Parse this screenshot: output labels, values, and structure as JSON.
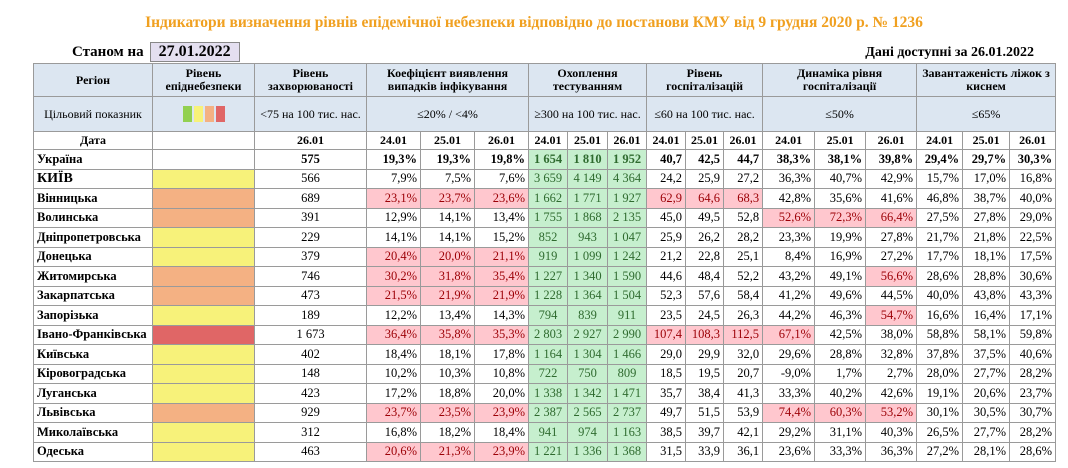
{
  "header": {
    "title": "Індикатори визначення рівнів епідемічної небезпеки відповідно до постанови КМУ від 9 грудня 2020 р. № 1236",
    "as_of_label": "Станом на",
    "as_of_date": "27.01.2022",
    "available": "Дані доступні за 26.01.2022"
  },
  "table": {
    "columns": [
      "Регіон",
      "Рівень епіднебезпеки",
      "Рівень захворюваності",
      "Коефіцієнт виявлення випадків інфікування",
      "Охоплення тестуванням",
      "Рівень госпіталізацій",
      "Динаміка рівня госпіталізації",
      "Завантаженість ліжок з киснем"
    ],
    "target_label": "Цільовий показник",
    "level_scale": [
      "#92d050",
      "#f7f27a",
      "#f4b183",
      "#e06666"
    ],
    "targets": [
      "<75 на 100 тис. нас.",
      "≤20% / <4%",
      "≥300 на 100 тис. нас.",
      "≤60 на 100 тис. нас.",
      "≤50%",
      "≤65%"
    ],
    "date_label": "Дата",
    "dates": [
      [
        "26.01"
      ],
      [
        "24.01",
        "25.01",
        "26.01"
      ],
      [
        "24.01",
        "25.01",
        "26.01"
      ],
      [
        "24.01",
        "25.01",
        "26.01"
      ],
      [
        "24.01",
        "25.01",
        "26.01"
      ],
      [
        "24.01",
        "25.01",
        "26.01"
      ]
    ],
    "rows": [
      {
        "region": "Україна",
        "cells": [
          "575",
          "19,3%",
          "19,3%",
          "19,8%",
          "1 654",
          "1 810",
          "1 952",
          "40,7",
          "42,5",
          "44,7",
          "38,3%",
          "38,1%",
          "39,8%",
          "29,4%",
          "29,7%",
          "30,3%"
        ],
        "red": []
      },
      {
        "region": "КИЇВ",
        "level_color": "#f7f27a",
        "cells": [
          "566",
          "7,9%",
          "7,5%",
          "7,6%",
          "3 659",
          "4 149",
          "4 364",
          "24,2",
          "25,9",
          "27,2",
          "36,3%",
          "40,7%",
          "42,9%",
          "15,7%",
          "17,0%",
          "16,8%"
        ],
        "red": []
      },
      {
        "region": "Вінницька",
        "level_color": "#f4b183",
        "cells": [
          "689",
          "23,1%",
          "23,7%",
          "23,6%",
          "1 662",
          "1 771",
          "1 927",
          "62,9",
          "64,6",
          "68,3",
          "42,8%",
          "35,6%",
          "41,6%",
          "46,8%",
          "38,7%",
          "40,0%"
        ],
        "red": [
          1,
          2,
          3,
          7,
          8,
          9
        ]
      },
      {
        "region": "Волинська",
        "level_color": "#f4b183",
        "cells": [
          "391",
          "12,9%",
          "14,1%",
          "13,4%",
          "1 755",
          "1 868",
          "2 135",
          "45,0",
          "49,5",
          "52,8",
          "52,6%",
          "72,3%",
          "66,4%",
          "27,5%",
          "27,8%",
          "29,0%"
        ],
        "red": [
          10,
          11,
          12
        ]
      },
      {
        "region": "Дніпропетровська",
        "level_color": "#f7f27a",
        "cells": [
          "229",
          "14,1%",
          "14,1%",
          "15,2%",
          "852",
          "943",
          "1 047",
          "25,9",
          "26,2",
          "28,2",
          "23,3%",
          "19,9%",
          "27,8%",
          "21,7%",
          "21,8%",
          "22,5%"
        ],
        "red": []
      },
      {
        "region": "Донецька",
        "level_color": "#f7f27a",
        "cells": [
          "379",
          "20,4%",
          "20,0%",
          "21,1%",
          "919",
          "1 099",
          "1 242",
          "21,2",
          "22,8",
          "25,1",
          "8,4%",
          "16,9%",
          "27,2%",
          "17,7%",
          "18,1%",
          "17,5%"
        ],
        "red": [
          1,
          2,
          3
        ]
      },
      {
        "region": "Житомирська",
        "level_color": "#f4b183",
        "cells": [
          "746",
          "30,2%",
          "31,8%",
          "35,4%",
          "1 227",
          "1 340",
          "1 590",
          "44,6",
          "48,4",
          "52,2",
          "43,2%",
          "49,1%",
          "56,6%",
          "28,6%",
          "28,8%",
          "30,6%"
        ],
        "red": [
          1,
          2,
          3,
          12
        ]
      },
      {
        "region": "Закарпатська",
        "level_color": "#f4b183",
        "cells": [
          "473",
          "21,5%",
          "21,9%",
          "21,9%",
          "1 228",
          "1 364",
          "1 504",
          "52,3",
          "57,6",
          "58,4",
          "41,2%",
          "49,6%",
          "44,5%",
          "40,0%",
          "43,8%",
          "43,3%"
        ],
        "red": [
          1,
          2,
          3
        ]
      },
      {
        "region": "Запорізька",
        "level_color": "#f7f27a",
        "cells": [
          "189",
          "12,2%",
          "13,4%",
          "14,3%",
          "794",
          "839",
          "911",
          "23,5",
          "24,5",
          "26,3",
          "44,2%",
          "46,3%",
          "54,7%",
          "16,6%",
          "16,4%",
          "17,1%"
        ],
        "red": [
          12
        ]
      },
      {
        "region": "Івано-Франківська",
        "level_color": "#e06666",
        "cells": [
          "1 673",
          "36,4%",
          "35,8%",
          "35,3%",
          "2 803",
          "2 927",
          "2 990",
          "107,4",
          "108,3",
          "112,5",
          "67,1%",
          "42,5%",
          "38,0%",
          "58,8%",
          "58,1%",
          "59,8%"
        ],
        "red": [
          1,
          2,
          3,
          7,
          8,
          9,
          10
        ]
      },
      {
        "region": "Київська",
        "level_color": "#f7f27a",
        "cells": [
          "402",
          "18,4%",
          "18,1%",
          "17,8%",
          "1 164",
          "1 304",
          "1 466",
          "29,0",
          "29,9",
          "32,0",
          "29,6%",
          "28,8%",
          "32,8%",
          "37,8%",
          "37,5%",
          "40,6%"
        ],
        "red": []
      },
      {
        "region": "Кіровоградська",
        "level_color": "#f7f27a",
        "cells": [
          "148",
          "10,2%",
          "10,3%",
          "10,8%",
          "722",
          "750",
          "809",
          "18,5",
          "19,5",
          "20,7",
          "-9,0%",
          "1,7%",
          "2,7%",
          "28,0%",
          "27,7%",
          "28,2%"
        ],
        "red": []
      },
      {
        "region": "Луганська",
        "level_color": "#f7f27a",
        "cells": [
          "423",
          "17,2%",
          "18,8%",
          "20,0%",
          "1 338",
          "1 342",
          "1 471",
          "35,7",
          "38,4",
          "41,3",
          "33,3%",
          "40,2%",
          "42,6%",
          "19,1%",
          "20,6%",
          "23,7%"
        ],
        "red": []
      },
      {
        "region": "Львівська",
        "level_color": "#f4b183",
        "cells": [
          "929",
          "23,7%",
          "23,5%",
          "23,9%",
          "2 387",
          "2 565",
          "2 737",
          "49,7",
          "51,5",
          "53,9",
          "74,4%",
          "60,3%",
          "53,2%",
          "30,1%",
          "30,5%",
          "30,7%"
        ],
        "red": [
          1,
          2,
          3,
          10,
          11,
          12
        ]
      },
      {
        "region": "Миколаївська",
        "level_color": "#f7f27a",
        "cells": [
          "312",
          "16,8%",
          "18,2%",
          "18,4%",
          "941",
          "974",
          "1 163",
          "38,5",
          "39,7",
          "42,1",
          "29,2%",
          "31,1%",
          "40,3%",
          "26,5%",
          "27,7%",
          "28,2%"
        ],
        "red": []
      },
      {
        "region": "Одеська",
        "level_color": "#f7f27a",
        "cells": [
          "463",
          "20,6%",
          "21,3%",
          "23,9%",
          "1 221",
          "1 336",
          "1 368",
          "31,5",
          "33,9",
          "36,1",
          "23,6%",
          "33,3%",
          "36,3%",
          "27,2%",
          "28,1%",
          "28,6%"
        ],
        "red": [
          1,
          2,
          3
        ]
      }
    ]
  }
}
